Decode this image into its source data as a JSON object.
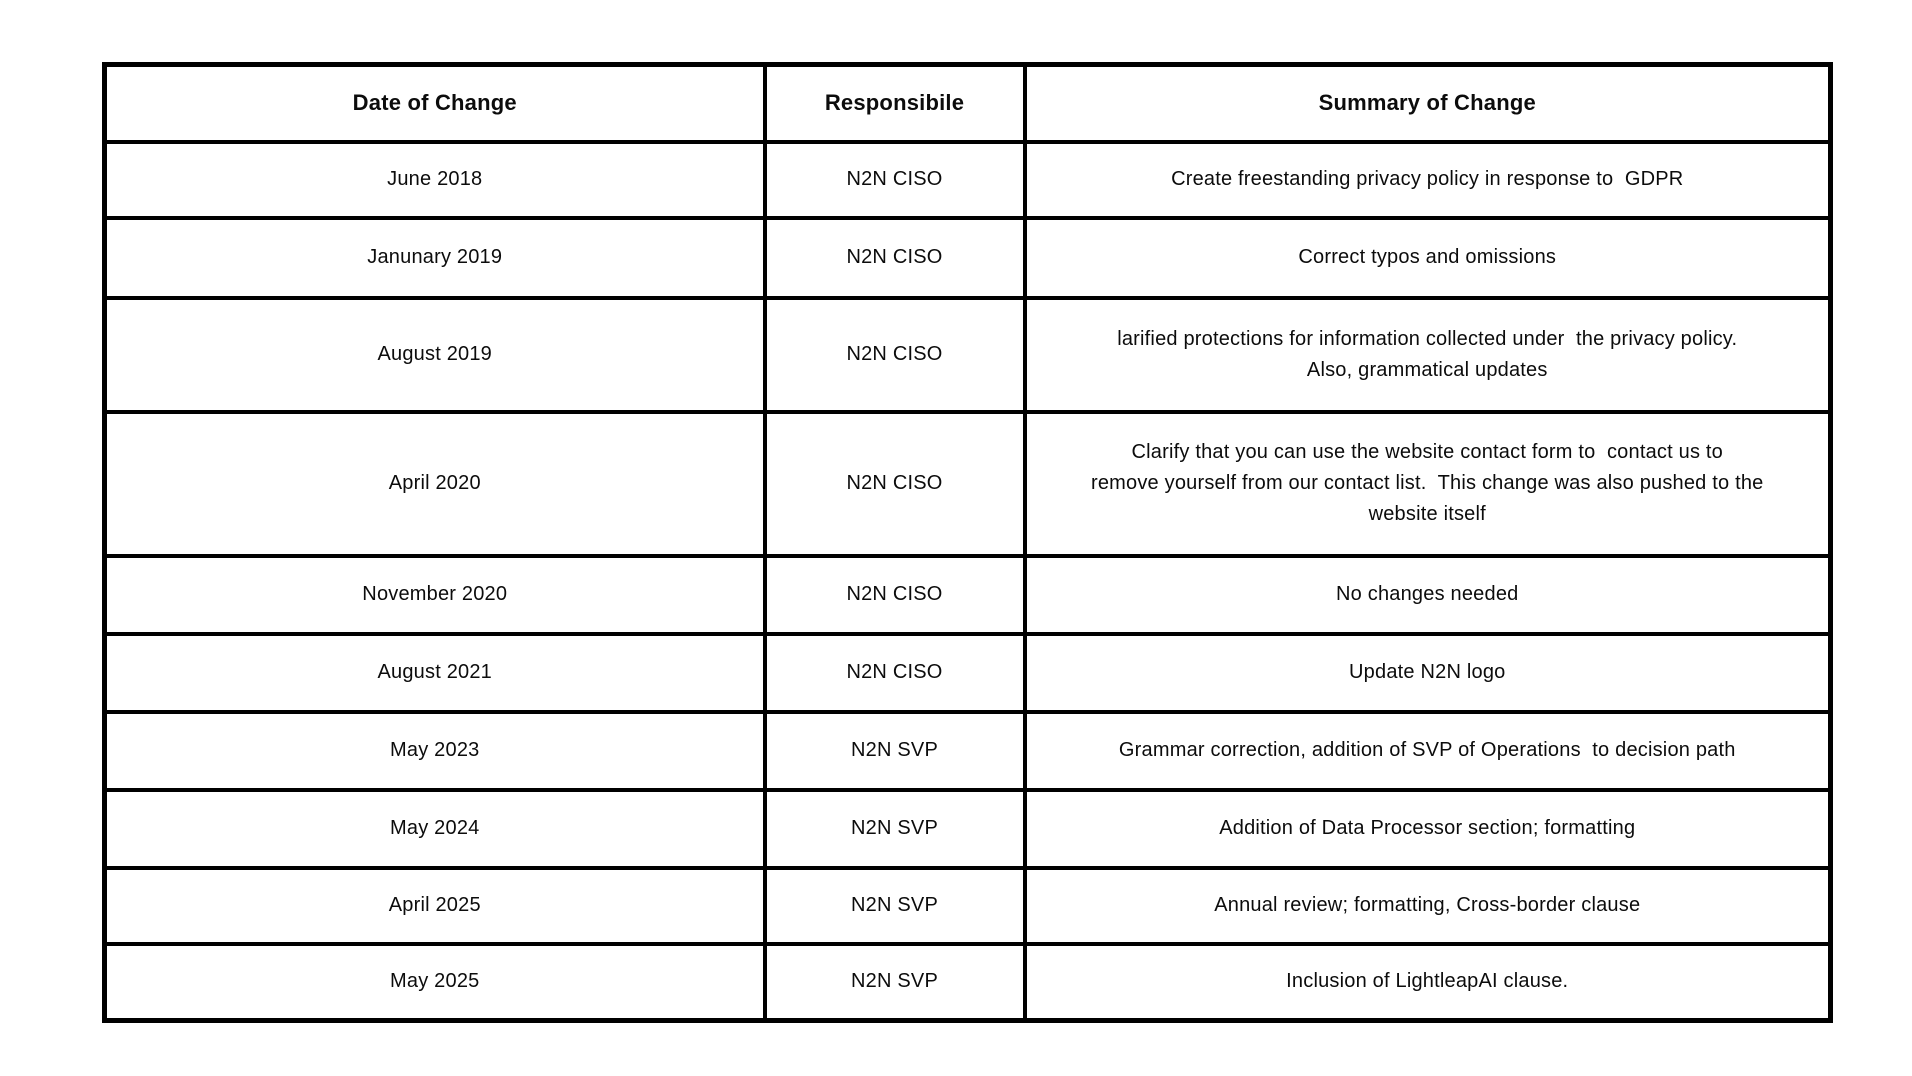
{
  "table": {
    "columns": {
      "date": "Date of Change",
      "responsible": "Responsibile",
      "summary": "Summary of Change"
    },
    "rows": [
      {
        "date": "June 2018",
        "responsible": "N2N CISO",
        "summary": "Create freestanding privacy policy in response to  GDPR"
      },
      {
        "date": "Janunary 2019",
        "responsible": "N2N CISO",
        "summary": "Correct typos and omissions"
      },
      {
        "date": "August 2019",
        "responsible": "N2N CISO",
        "summary": "larified protections for information collected under  the privacy policy.\nAlso, grammatical updates"
      },
      {
        "date": "April 2020",
        "responsible": "N2N CISO",
        "summary": "Clarify that you can use the website contact form to  contact us to\nremove yourself from our contact list.  This change was also pushed to the\nwebsite itself"
      },
      {
        "date": "November 2020",
        "responsible": "N2N CISO",
        "summary": "No changes needed"
      },
      {
        "date": "August 2021",
        "responsible": "N2N CISO",
        "summary": "Update N2N logo"
      },
      {
        "date": "May 2023",
        "responsible": "N2N SVP",
        "summary": "Grammar correction, addition of SVP of Operations  to decision path"
      },
      {
        "date": "May 2024",
        "responsible": "N2N SVP",
        "summary": "Addition of Data Processor section; formatting"
      },
      {
        "date": "April 2025",
        "responsible": "N2N SVP",
        "summary": "Annual review; formatting, Cross-border clause"
      },
      {
        "date": "May 2025",
        "responsible": "N2N SVP",
        "summary": "Inclusion of LightleapAI clause."
      }
    ],
    "colors": {
      "border": "#000000",
      "text": "#0c0c0c",
      "background": "#ffffff"
    }
  }
}
